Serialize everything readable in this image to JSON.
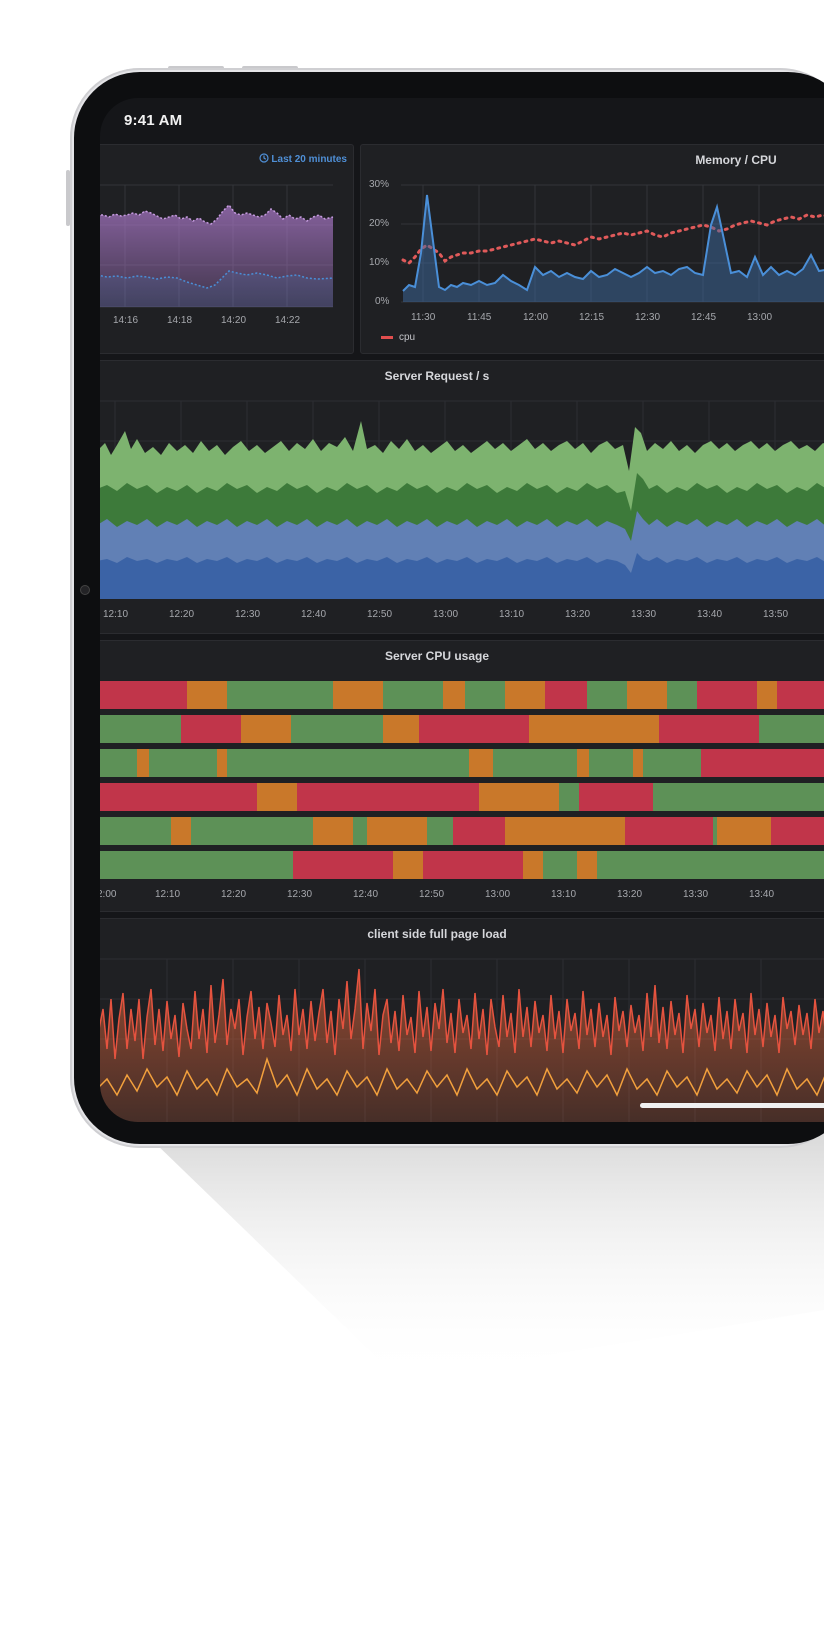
{
  "status_bar": {
    "time": "9:41 AM"
  },
  "panels": {
    "top_left": {
      "timepicker_icon": "clock-icon",
      "timepicker_label": "Last 20 minutes",
      "x_ticks": [
        "14:16",
        "14:18",
        "14:20",
        "14:22"
      ]
    },
    "memory_cpu": {
      "title": "Memory / CPU",
      "y_ticks": [
        "30%",
        "20%",
        "10%",
        "0%"
      ],
      "x_ticks": [
        "11:30",
        "11:45",
        "12:00",
        "12:15",
        "12:30",
        "12:45",
        "13:00"
      ],
      "legend": [
        "cpu"
      ]
    },
    "server_requests": {
      "title": "Server Request / s",
      "x_ticks": [
        "12:10",
        "12:20",
        "12:30",
        "12:40",
        "12:50",
        "13:00",
        "13:10",
        "13:20",
        "13:30",
        "13:40",
        "13:50"
      ]
    },
    "server_cpu": {
      "title": "Server CPU usage",
      "x_ticks": [
        "2:00",
        "12:10",
        "12:20",
        "12:30",
        "12:40",
        "12:50",
        "13:00",
        "13:10",
        "13:20",
        "13:30",
        "13:40"
      ]
    },
    "page_load": {
      "title": "client side full page load"
    }
  },
  "colors": {
    "purple": "#a877c6",
    "blue": "#4a8fd8",
    "red": "#e05a5a",
    "green": "#5c9a57",
    "light_green": "#7db36f",
    "dark_green": "#3d7a3a",
    "slate_blue": "#4a6fb0",
    "heat_red": "#c1354a",
    "heat_orange": "#c9782a",
    "heat_green": "#5d9157",
    "orange_line": "#ef6b3d"
  }
}
